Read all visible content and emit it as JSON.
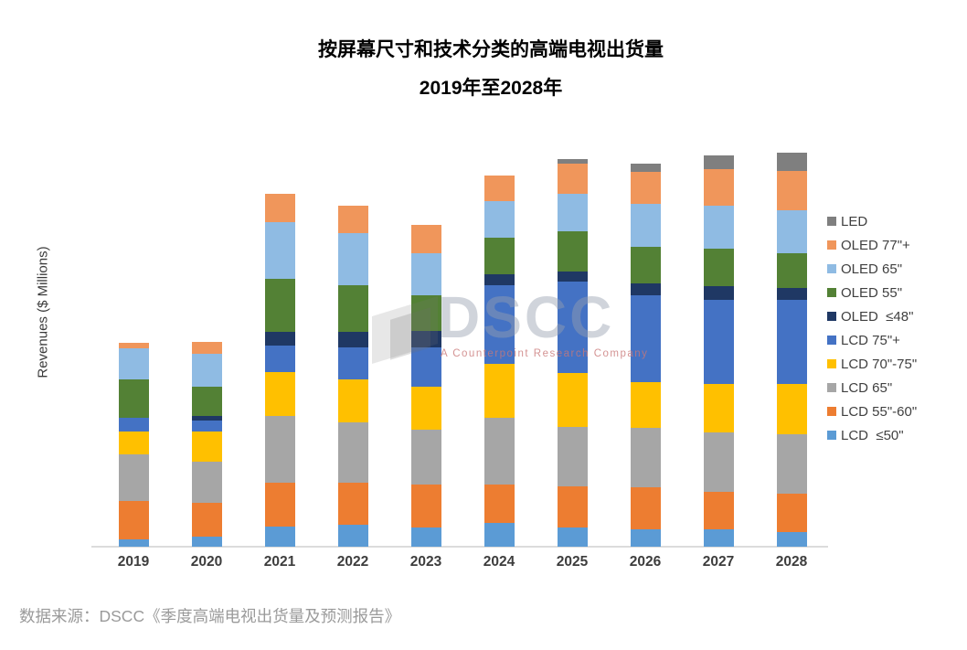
{
  "title": {
    "line1": "按屏幕尺寸和技术分类的高端电视出货量",
    "line2": "2019年至2028年"
  },
  "y_axis_label": "Revenues ($ Millions)",
  "source_note": "数据来源：DSCC《季度高端电视出货量及预测报告》",
  "watermark": {
    "brand": "DSCC",
    "tagline": "A Counterpoint Research Company"
  },
  "legend": {
    "position": "right",
    "items": [
      {
        "label": "LED",
        "color": "#7F7F7F"
      },
      {
        "label": "OLED 77\"+",
        "color": "#F0965B"
      },
      {
        "label": "OLED 65\"",
        "color": "#8FBBE3"
      },
      {
        "label": "OLED 55\"",
        "color": "#538135"
      },
      {
        "label": "OLED  ≤48\"",
        "color": "#1F3864"
      },
      {
        "label": "LCD 75\"+",
        "color": "#4472C4"
      },
      {
        "label": "LCD 70\"-75\"",
        "color": "#FFC000"
      },
      {
        "label": "LCD 65\"",
        "color": "#A6A6A6"
      },
      {
        "label": "LCD 55\"-60\"",
        "color": "#ED7D31"
      },
      {
        "label": "LCD  ≤50\"",
        "color": "#5B9BD5"
      }
    ]
  },
  "chart_data": {
    "type": "bar",
    "stacked": true,
    "title": "按屏幕尺寸和技术分类的高端电视出货量 2019年至2028年",
    "xlabel": "",
    "ylabel": "Revenues ($ Millions)",
    "categories": [
      "2019",
      "2020",
      "2021",
      "2022",
      "2023",
      "2024",
      "2025",
      "2026",
      "2027",
      "2028"
    ],
    "series_order": "bottom-to-top in the stack",
    "series": [
      {
        "name": "LCD ≤50\"",
        "color": "#5B9BD5",
        "values": [
          8,
          11,
          22,
          24,
          21,
          26,
          21,
          19,
          19,
          16
        ]
      },
      {
        "name": "LCD 55\"-60\"",
        "color": "#ED7D31",
        "values": [
          42,
          37,
          48,
          46,
          47,
          42,
          45,
          46,
          41,
          42
        ]
      },
      {
        "name": "LCD 65\"",
        "color": "#A6A6A6",
        "values": [
          51,
          45,
          73,
          66,
          60,
          73,
          65,
          65,
          65,
          65
        ]
      },
      {
        "name": "LCD 70\"-75\"",
        "color": "#FFC000",
        "values": [
          25,
          33,
          48,
          47,
          47,
          59,
          59,
          50,
          53,
          55
        ]
      },
      {
        "name": "LCD 75\"+",
        "color": "#4472C4",
        "values": [
          15,
          12,
          29,
          35,
          43,
          86,
          100,
          95,
          92,
          92
        ]
      },
      {
        "name": "OLED ≤48\"",
        "color": "#1F3864",
        "values": [
          0,
          5,
          15,
          17,
          18,
          12,
          11,
          13,
          15,
          13
        ]
      },
      {
        "name": "OLED 55\"",
        "color": "#538135",
        "values": [
          42,
          32,
          58,
          51,
          39,
          40,
          44,
          40,
          41,
          38
        ]
      },
      {
        "name": "OLED 65\"",
        "color": "#8FBBE3",
        "values": [
          34,
          36,
          62,
          57,
          46,
          40,
          41,
          47,
          47,
          47
        ]
      },
      {
        "name": "OLED 77\"+",
        "color": "#F0965B",
        "values": [
          6,
          13,
          31,
          30,
          31,
          28,
          33,
          35,
          40,
          43
        ]
      },
      {
        "name": "LED",
        "color": "#7F7F7F",
        "values": [
          0,
          0,
          0,
          0,
          0,
          0,
          5,
          9,
          15,
          20
        ]
      }
    ],
    "totals_per_year": [
      223,
      224,
      386,
      373,
      352,
      406,
      424,
      419,
      428,
      431
    ],
    "value_units": "relative units — the source chart shows no y-axis tick labels; values estimated from bar segment heights",
    "ylim": [
      0,
      440
    ],
    "grid": false,
    "legend_position": "right"
  }
}
